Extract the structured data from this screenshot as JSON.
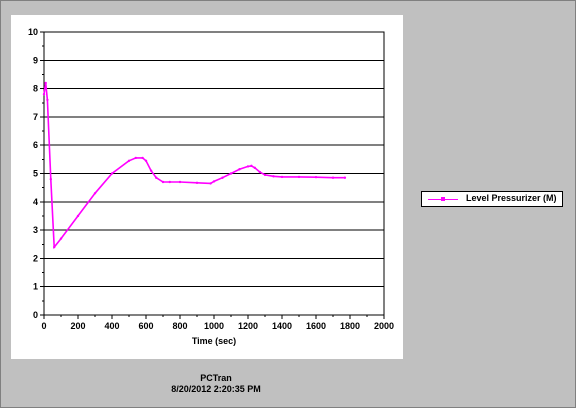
{
  "chart_data": {
    "type": "line",
    "xlabel": "Time (sec)",
    "ylabel": "",
    "xlim": [
      0,
      2000
    ],
    "ylim": [
      0,
      10
    ],
    "xticks": [
      0,
      200,
      400,
      600,
      800,
      1000,
      1200,
      1400,
      1600,
      1800,
      2000
    ],
    "yticks": [
      0,
      1,
      2,
      3,
      4,
      5,
      6,
      7,
      8,
      9,
      10
    ],
    "grid": "horizontal",
    "legend_position": "right",
    "series": [
      {
        "name": "Level Pressurizer (M)",
        "color": "#ff00ff",
        "x": [
          0,
          10,
          20,
          40,
          60,
          100,
          200,
          300,
          400,
          500,
          540,
          580,
          600,
          630,
          660,
          700,
          740,
          800,
          900,
          980,
          1000,
          1050,
          1100,
          1150,
          1200,
          1220,
          1240,
          1270,
          1300,
          1350,
          1400,
          1500,
          1600,
          1700,
          1770
        ],
        "y": [
          7.8,
          8.2,
          7.6,
          4.8,
          2.4,
          2.7,
          3.5,
          4.3,
          5.0,
          5.45,
          5.55,
          5.55,
          5.45,
          5.1,
          4.85,
          4.7,
          4.7,
          4.7,
          4.67,
          4.65,
          4.72,
          4.85,
          5.0,
          5.15,
          5.25,
          5.27,
          5.2,
          5.05,
          4.95,
          4.9,
          4.88,
          4.88,
          4.87,
          4.85,
          4.85
        ]
      }
    ]
  },
  "footer": {
    "app_name": "PCTran",
    "timestamp": "8/20/2012 2:20:35 PM"
  }
}
